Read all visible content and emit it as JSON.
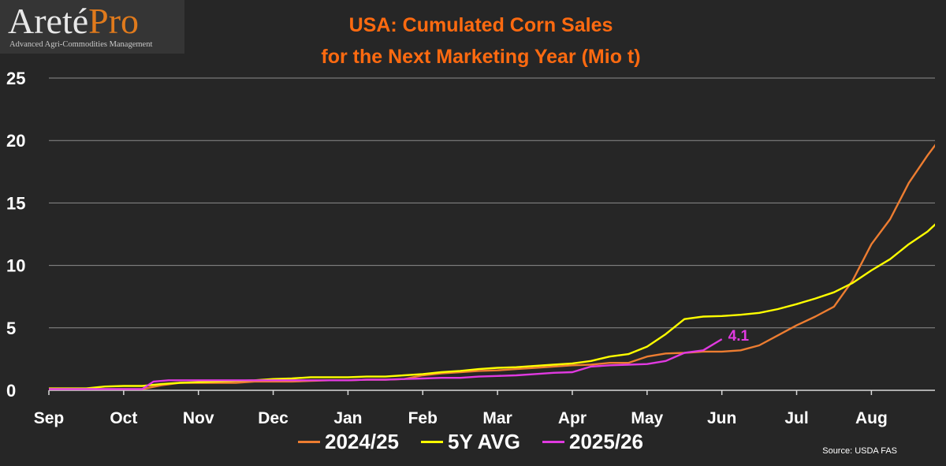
{
  "logo": {
    "name_part1": "Areté",
    "name_part2": "Pro",
    "tagline": "Advanced Agri-Commodities Management"
  },
  "source": "Source: USDA FAS",
  "colors": {
    "background": "#262626",
    "grid": "#8c8c8c",
    "title": "#ff6a10"
  },
  "chart_data": {
    "type": "line",
    "title_line1": "USA: Cumulated Corn Sales",
    "title_line2": "for the Next Marketing Year (Mio t)",
    "xlabel": "",
    "ylabel": "",
    "x_ticks": [
      "Sep",
      "Oct",
      "Nov",
      "Dec",
      "Jan",
      "Feb",
      "Mar",
      "Apr",
      "May",
      "Jun",
      "Jul",
      "Aug"
    ],
    "x_range": [
      0,
      11.85
    ],
    "ylim": [
      0,
      25
    ],
    "y_ticks": [
      0,
      5,
      10,
      15,
      20,
      25
    ],
    "grid": "horizontal",
    "legend_position": "bottom",
    "annotation": {
      "text": "4.1",
      "series": "2025/26"
    },
    "series": [
      {
        "name": "2024/25",
        "color": "#ed7d31",
        "points": [
          [
            0,
            0.1
          ],
          [
            0.25,
            0.1
          ],
          [
            0.5,
            0.1
          ],
          [
            0.75,
            0.1
          ],
          [
            1,
            0.1
          ],
          [
            1.25,
            0.1
          ],
          [
            1.5,
            0.4
          ],
          [
            1.75,
            0.6
          ],
          [
            2,
            0.6
          ],
          [
            2.25,
            0.6
          ],
          [
            2.5,
            0.6
          ],
          [
            2.75,
            0.7
          ],
          [
            3,
            0.7
          ],
          [
            3.25,
            0.7
          ],
          [
            3.5,
            0.75
          ],
          [
            3.75,
            0.8
          ],
          [
            4,
            0.8
          ],
          [
            4.25,
            0.85
          ],
          [
            4.5,
            0.85
          ],
          [
            4.75,
            0.9
          ],
          [
            5,
            1.2
          ],
          [
            5.25,
            1.35
          ],
          [
            5.5,
            1.45
          ],
          [
            5.75,
            1.55
          ],
          [
            6,
            1.6
          ],
          [
            6.25,
            1.7
          ],
          [
            6.5,
            1.8
          ],
          [
            6.75,
            1.9
          ],
          [
            7,
            2.0
          ],
          [
            7.25,
            2.05
          ],
          [
            7.5,
            2.2
          ],
          [
            7.75,
            2.2
          ],
          [
            8,
            2.7
          ],
          [
            8.25,
            2.95
          ],
          [
            8.5,
            3.0
          ],
          [
            8.75,
            3.1
          ],
          [
            9,
            3.1
          ],
          [
            9.25,
            3.2
          ],
          [
            9.5,
            3.6
          ],
          [
            9.75,
            4.4
          ],
          [
            10,
            5.2
          ],
          [
            10.25,
            5.9
          ],
          [
            10.5,
            6.7
          ],
          [
            10.75,
            8.8
          ],
          [
            11,
            11.7
          ],
          [
            11.25,
            13.7
          ],
          [
            11.5,
            16.6
          ],
          [
            11.75,
            18.8
          ],
          [
            12,
            20.8
          ],
          [
            12.25,
            21.9
          ]
        ]
      },
      {
        "name": "5Y AVG",
        "color": "#ffff00",
        "points": [
          [
            0,
            0.15
          ],
          [
            0.25,
            0.15
          ],
          [
            0.5,
            0.15
          ],
          [
            0.75,
            0.3
          ],
          [
            1,
            0.35
          ],
          [
            1.25,
            0.35
          ],
          [
            1.5,
            0.5
          ],
          [
            1.75,
            0.6
          ],
          [
            2,
            0.65
          ],
          [
            2.25,
            0.7
          ],
          [
            2.5,
            0.75
          ],
          [
            2.75,
            0.8
          ],
          [
            3,
            0.9
          ],
          [
            3.25,
            0.95
          ],
          [
            3.5,
            1.05
          ],
          [
            3.75,
            1.05
          ],
          [
            4,
            1.05
          ],
          [
            4.25,
            1.1
          ],
          [
            4.5,
            1.1
          ],
          [
            4.75,
            1.2
          ],
          [
            5,
            1.3
          ],
          [
            5.25,
            1.45
          ],
          [
            5.5,
            1.55
          ],
          [
            5.75,
            1.7
          ],
          [
            6,
            1.8
          ],
          [
            6.25,
            1.85
          ],
          [
            6.5,
            1.95
          ],
          [
            6.75,
            2.05
          ],
          [
            7,
            2.15
          ],
          [
            7.25,
            2.35
          ],
          [
            7.5,
            2.7
          ],
          [
            7.75,
            2.9
          ],
          [
            8,
            3.5
          ],
          [
            8.25,
            4.5
          ],
          [
            8.5,
            5.7
          ],
          [
            8.75,
            5.9
          ],
          [
            9,
            5.95
          ],
          [
            9.25,
            6.05
          ],
          [
            9.5,
            6.2
          ],
          [
            9.75,
            6.5
          ],
          [
            10,
            6.9
          ],
          [
            10.25,
            7.35
          ],
          [
            10.5,
            7.85
          ],
          [
            10.75,
            8.6
          ],
          [
            11,
            9.6
          ],
          [
            11.25,
            10.5
          ],
          [
            11.5,
            11.7
          ],
          [
            11.75,
            12.7
          ],
          [
            12,
            14.1
          ],
          [
            12.25,
            16.2
          ]
        ]
      },
      {
        "name": "2025/26",
        "color": "#e03ae0",
        "points": [
          [
            0,
            0.1
          ],
          [
            0.25,
            0.1
          ],
          [
            0.5,
            0.1
          ],
          [
            0.75,
            0.1
          ],
          [
            1,
            0.1
          ],
          [
            1.25,
            0.1
          ],
          [
            1.4,
            0.7
          ],
          [
            1.6,
            0.8
          ],
          [
            1.8,
            0.8
          ],
          [
            2,
            0.8
          ],
          [
            2.25,
            0.8
          ],
          [
            2.5,
            0.8
          ],
          [
            2.75,
            0.8
          ],
          [
            3,
            0.8
          ],
          [
            3.25,
            0.8
          ],
          [
            3.5,
            0.8
          ],
          [
            3.75,
            0.8
          ],
          [
            4,
            0.8
          ],
          [
            4.25,
            0.85
          ],
          [
            4.5,
            0.85
          ],
          [
            4.75,
            0.9
          ],
          [
            5,
            0.95
          ],
          [
            5.25,
            1.0
          ],
          [
            5.5,
            1.0
          ],
          [
            5.75,
            1.1
          ],
          [
            6,
            1.15
          ],
          [
            6.25,
            1.2
          ],
          [
            6.5,
            1.3
          ],
          [
            6.75,
            1.4
          ],
          [
            7,
            1.45
          ],
          [
            7.25,
            1.9
          ],
          [
            7.5,
            2.0
          ],
          [
            7.75,
            2.05
          ],
          [
            8,
            2.1
          ],
          [
            8.25,
            2.35
          ],
          [
            8.5,
            3.0
          ],
          [
            8.75,
            3.2
          ],
          [
            9,
            4.1
          ]
        ]
      }
    ]
  }
}
